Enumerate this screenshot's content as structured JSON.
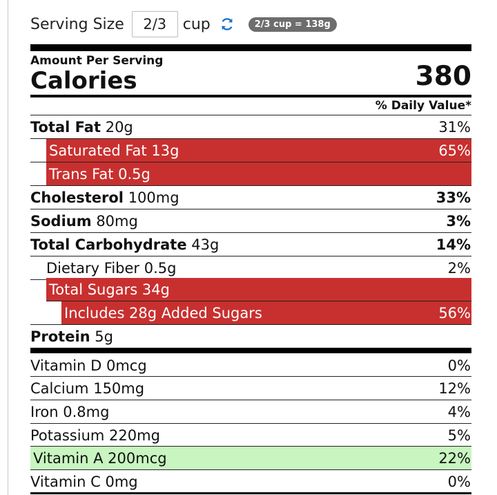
{
  "serving": {
    "label": "Serving Size",
    "quantity": "2/3",
    "unit": "cup",
    "badge": "2/3 cup = 138g"
  },
  "label": {
    "amount_per_serving": "Amount Per Serving",
    "calories_label": "Calories",
    "calories_value": "380",
    "dv_header": "% Daily Value*"
  },
  "nutrients": [
    {
      "name": "Total Fat",
      "amount": "20g",
      "dv": "31%"
    },
    {
      "name": "Saturated Fat",
      "amount": "13g",
      "dv": "65%"
    },
    {
      "name": "Trans Fat",
      "amount": "0.5g",
      "dv": ""
    },
    {
      "name": "Cholesterol",
      "amount": "100mg",
      "dv": "33%"
    },
    {
      "name": "Sodium",
      "amount": "80mg",
      "dv": "3%"
    },
    {
      "name": "Total Carbohydrate",
      "amount": "43g",
      "dv": "14%"
    },
    {
      "name": "Dietary Fiber",
      "amount": "0.5g",
      "dv": "2%"
    },
    {
      "name": "Total Sugars",
      "amount": "34g",
      "dv": ""
    },
    {
      "name": "Includes 28g Added Sugars",
      "amount": "",
      "dv": "56%"
    },
    {
      "name": "Protein",
      "amount": "5g",
      "dv": ""
    }
  ],
  "vitamins": [
    {
      "name": "Vitamin D",
      "amount": "0mcg",
      "dv": "0%"
    },
    {
      "name": "Calcium",
      "amount": "150mg",
      "dv": "12%"
    },
    {
      "name": "Iron",
      "amount": "0.8mg",
      "dv": "4%"
    },
    {
      "name": "Potassium",
      "amount": "220mg",
      "dv": "5%"
    },
    {
      "name": "Vitamin A",
      "amount": "200mcg",
      "dv": "22%"
    },
    {
      "name": "Vitamin C",
      "amount": "0mg",
      "dv": "0%"
    }
  ],
  "colors": {
    "high_highlight": "#c8302f",
    "good_highlight": "#c8f5c0",
    "badge_bg": "#6d6d6d",
    "refresh_icon": "#1a73c8"
  },
  "icons": {
    "refresh": "refresh-icon"
  }
}
